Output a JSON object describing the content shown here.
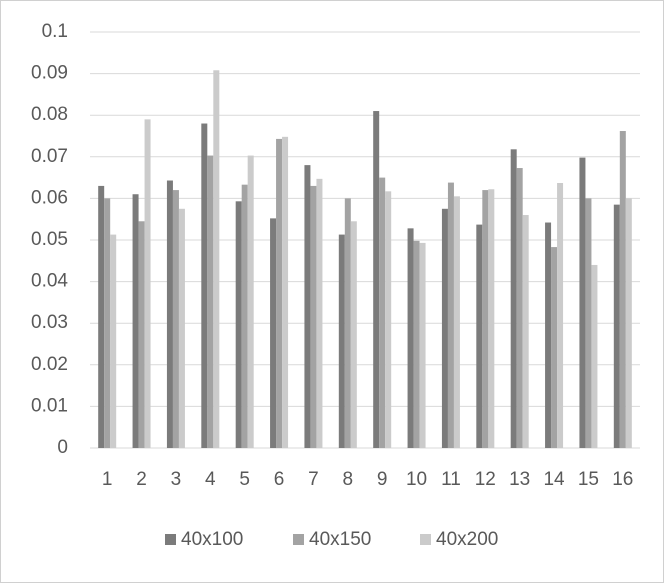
{
  "chart_data": {
    "type": "bar",
    "categories": [
      "1",
      "2",
      "3",
      "4",
      "5",
      "6",
      "7",
      "8",
      "9",
      "10",
      "11",
      "12",
      "13",
      "14",
      "15",
      "16"
    ],
    "series": [
      {
        "name": "40x100",
        "color": "#7b7b7b",
        "values": [
          0.063,
          0.061,
          0.0643,
          0.078,
          0.0593,
          0.0552,
          0.068,
          0.0513,
          0.081,
          0.0528,
          0.0575,
          0.0537,
          0.0718,
          0.0542,
          0.0698,
          0.0585
        ]
      },
      {
        "name": "40x150",
        "color": "#a3a3a3",
        "values": [
          0.06,
          0.0545,
          0.062,
          0.0703,
          0.0633,
          0.0743,
          0.063,
          0.06,
          0.065,
          0.0498,
          0.0638,
          0.062,
          0.0673,
          0.0483,
          0.06,
          0.0762
        ]
      },
      {
        "name": "40x200",
        "color": "#cbcbcb",
        "values": [
          0.0513,
          0.079,
          0.0575,
          0.0908,
          0.0703,
          0.0748,
          0.0647,
          0.0545,
          0.0617,
          0.0493,
          0.0605,
          0.0622,
          0.056,
          0.0637,
          0.044,
          0.06
        ]
      }
    ],
    "ylim": [
      0,
      0.1
    ],
    "yticks": [
      0,
      0.01,
      0.02,
      0.03,
      0.04,
      0.05,
      0.06,
      0.07,
      0.08,
      0.09,
      0.1
    ],
    "grid": true,
    "legend": "bottom"
  }
}
